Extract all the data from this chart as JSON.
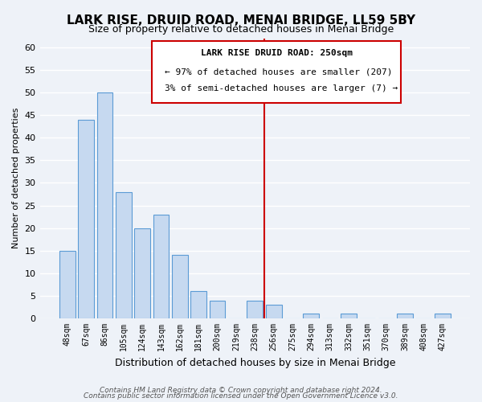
{
  "title": "LARK RISE, DRUID ROAD, MENAI BRIDGE, LL59 5BY",
  "subtitle": "Size of property relative to detached houses in Menai Bridge",
  "xlabel": "Distribution of detached houses by size in Menai Bridge",
  "ylabel": "Number of detached properties",
  "bar_labels": [
    "48sqm",
    "67sqm",
    "86sqm",
    "105sqm",
    "124sqm",
    "143sqm",
    "162sqm",
    "181sqm",
    "200sqm",
    "219sqm",
    "238sqm",
    "256sqm",
    "275sqm",
    "294sqm",
    "313sqm",
    "332sqm",
    "351sqm",
    "370sqm",
    "389sqm",
    "408sqm",
    "427sqm"
  ],
  "bar_values": [
    15,
    44,
    50,
    28,
    20,
    23,
    14,
    6,
    4,
    0,
    4,
    3,
    0,
    1,
    0,
    1,
    0,
    0,
    1,
    0,
    1
  ],
  "bar_color": "#c6d9f0",
  "bar_edge_color": "#5b9bd5",
  "ylim": [
    0,
    62
  ],
  "yticks": [
    0,
    5,
    10,
    15,
    20,
    25,
    30,
    35,
    40,
    45,
    50,
    55,
    60
  ],
  "property_line_color": "#cc0000",
  "annotation_title": "LARK RISE DRUID ROAD: 250sqm",
  "annotation_line1": "← 97% of detached houses are smaller (207)",
  "annotation_line2": "3% of semi-detached houses are larger (7) →",
  "footer_line1": "Contains HM Land Registry data © Crown copyright and database right 2024.",
  "footer_line2": "Contains public sector information licensed under the Open Government Licence v3.0.",
  "bg_color": "#eef2f8",
  "grid_color": "#ffffff"
}
